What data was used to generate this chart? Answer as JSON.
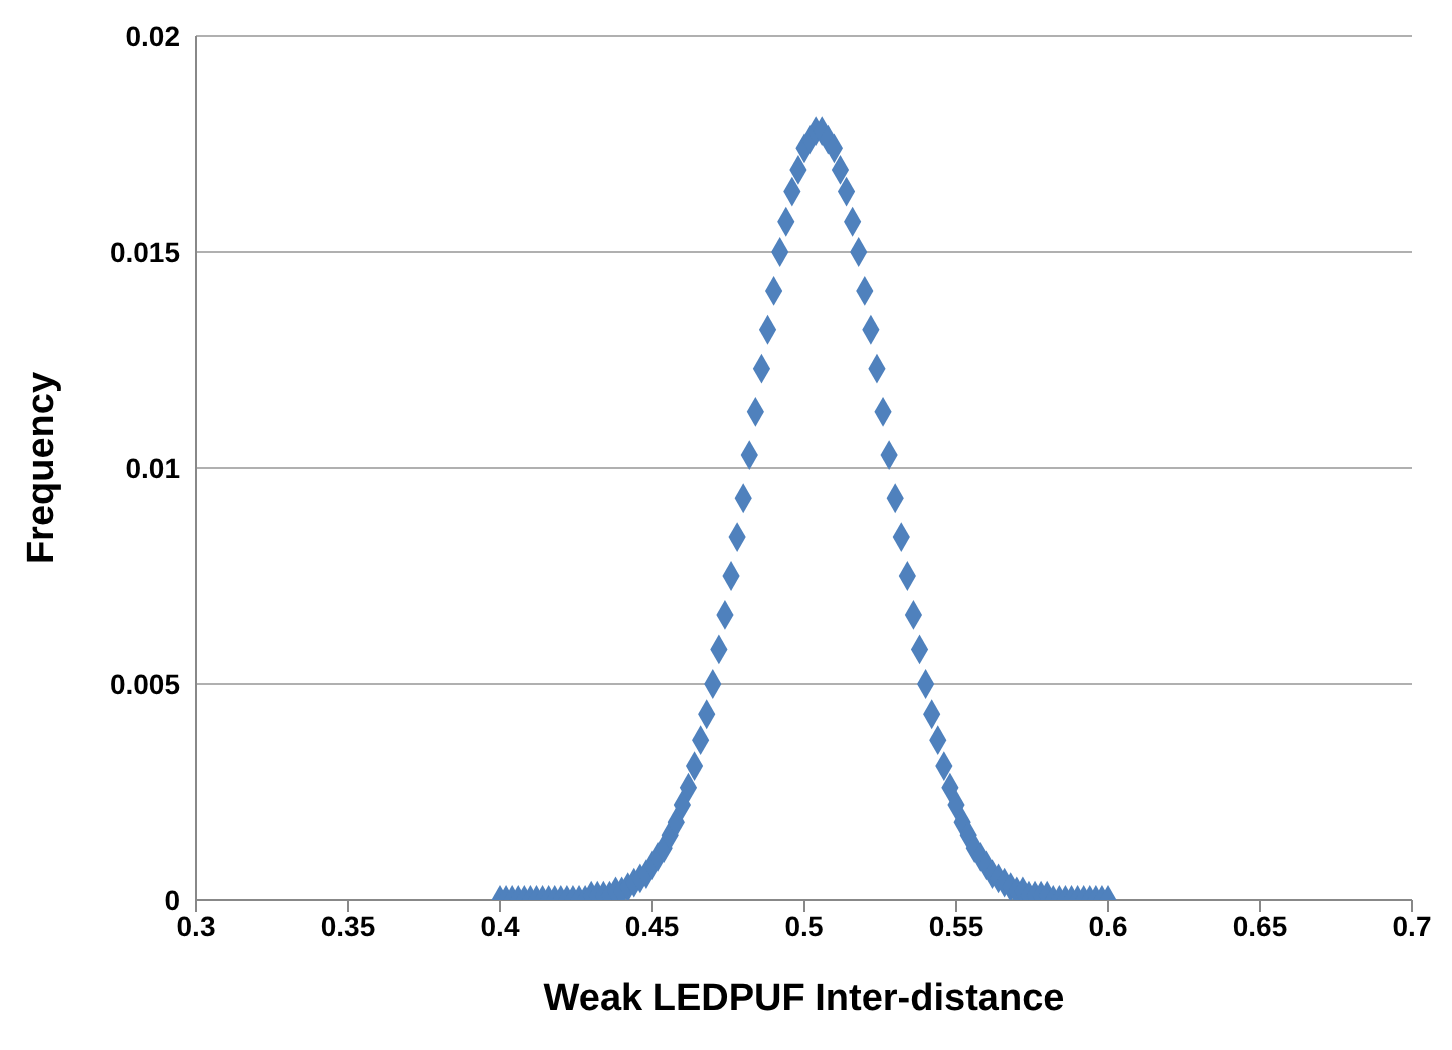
{
  "chart_data": {
    "type": "scatter",
    "xlabel": "Weak LEDPUF Inter-distance",
    "ylabel": "Frequency",
    "x": [
      0.4,
      0.402,
      0.404,
      0.406,
      0.408,
      0.41,
      0.412,
      0.414,
      0.416,
      0.418,
      0.42,
      0.422,
      0.424,
      0.426,
      0.428,
      0.43,
      0.432,
      0.434,
      0.436,
      0.438,
      0.44,
      0.442,
      0.444,
      0.446,
      0.448,
      0.45,
      0.452,
      0.454,
      0.456,
      0.458,
      0.46,
      0.462,
      0.464,
      0.466,
      0.468,
      0.47,
      0.472,
      0.474,
      0.476,
      0.478,
      0.48,
      0.482,
      0.484,
      0.486,
      0.488,
      0.49,
      0.492,
      0.494,
      0.496,
      0.498,
      0.5,
      0.502,
      0.504,
      0.506,
      0.508,
      0.51,
      0.512,
      0.514,
      0.516,
      0.518,
      0.52,
      0.522,
      0.524,
      0.526,
      0.528,
      0.53,
      0.532,
      0.534,
      0.536,
      0.538,
      0.54,
      0.542,
      0.544,
      0.546,
      0.548,
      0.55,
      0.552,
      0.554,
      0.556,
      0.558,
      0.56,
      0.562,
      0.564,
      0.566,
      0.568,
      0.57,
      0.572,
      0.574,
      0.576,
      0.578,
      0.58,
      0.582,
      0.584,
      0.586,
      0.588,
      0.59,
      0.592,
      0.594,
      0.596,
      0.598,
      0.6
    ],
    "series": [
      {
        "color": "#4f81bd",
        "values": [
          0,
          0,
          0,
          0,
          0,
          0,
          0,
          0,
          0,
          0,
          0,
          0,
          0,
          0,
          0,
          0.0001,
          0.0001,
          0.0001,
          0.0001,
          0.0002,
          0.0002,
          0.0003,
          0.0004,
          0.0005,
          0.0006,
          0.0008,
          0.001,
          0.0012,
          0.0015,
          0.0018,
          0.0022,
          0.0026,
          0.0031,
          0.0037,
          0.0043,
          0.005,
          0.0058,
          0.0066,
          0.0075,
          0.0084,
          0.0093,
          0.0103,
          0.0113,
          0.0123,
          0.0132,
          0.0141,
          0.015,
          0.0157,
          0.0164,
          0.0169,
          0.0174,
          0.0176,
          0.0178,
          0.0178,
          0.0176,
          0.0174,
          0.0169,
          0.0164,
          0.0157,
          0.015,
          0.0141,
          0.0132,
          0.0123,
          0.0113,
          0.0103,
          0.0093,
          0.0084,
          0.0075,
          0.0066,
          0.0058,
          0.005,
          0.0043,
          0.0037,
          0.0031,
          0.0026,
          0.0022,
          0.0018,
          0.0015,
          0.0012,
          0.001,
          0.0008,
          0.0006,
          0.0005,
          0.0004,
          0.0003,
          0.0002,
          0.0002,
          0.0001,
          0.0001,
          0.0001,
          0.0001,
          0,
          0,
          0,
          0,
          0,
          0,
          0,
          0,
          0,
          0
        ]
      }
    ],
    "xlim": [
      0.3,
      0.7
    ],
    "xticks": [
      0.3,
      0.35,
      0.4,
      0.45,
      0.5,
      0.55,
      0.6,
      0.65,
      0.7
    ],
    "ylim": [
      0,
      0.02
    ],
    "yticks": [
      0,
      0.005,
      0.01,
      0.015,
      0.02
    ],
    "grid": "y",
    "marker": "diamond"
  }
}
